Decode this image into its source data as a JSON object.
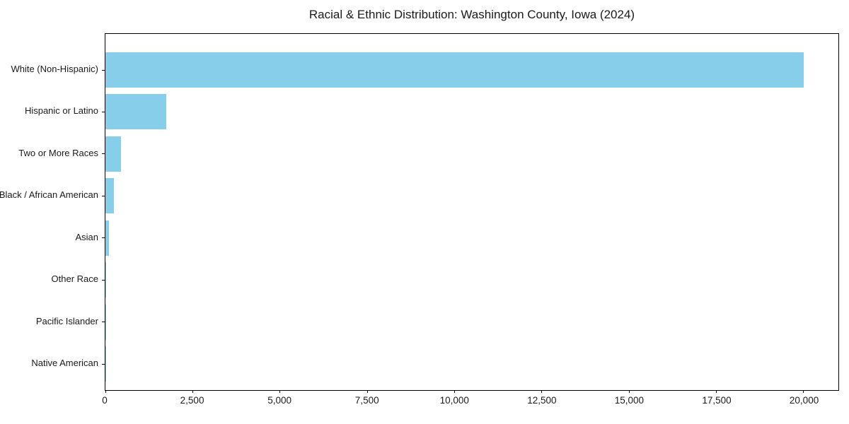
{
  "title": "Racial & Ethnic Distribution: Washington County, Iowa (2024)",
  "colors": {
    "bar": "#87CEEB",
    "axis": "#000000",
    "background": "#ffffff",
    "text": "#1a1a1a"
  },
  "chart_data": {
    "type": "bar",
    "orientation": "horizontal",
    "title": "Racial & Ethnic Distribution: Washington County, Iowa (2024)",
    "xlabel": "",
    "ylabel": "",
    "categories": [
      "White (Non-Hispanic)",
      "Hispanic or Latino",
      "Two or More Races",
      "Black / African American",
      "Asian",
      "Other Race",
      "Pacific Islander",
      "Native American"
    ],
    "values": [
      20000,
      1750,
      450,
      250,
      100,
      25,
      10,
      5
    ],
    "xlim": [
      0,
      21000
    ],
    "xticks": [
      0,
      2500,
      5000,
      7500,
      10000,
      12500,
      15000,
      17500,
      20000
    ],
    "xtick_labels": [
      "0",
      "2,500",
      "5,000",
      "7,500",
      "10,000",
      "12,500",
      "15,000",
      "17,500",
      "20,000"
    ],
    "grid": false,
    "legend": "none",
    "sort_order": "descending"
  }
}
